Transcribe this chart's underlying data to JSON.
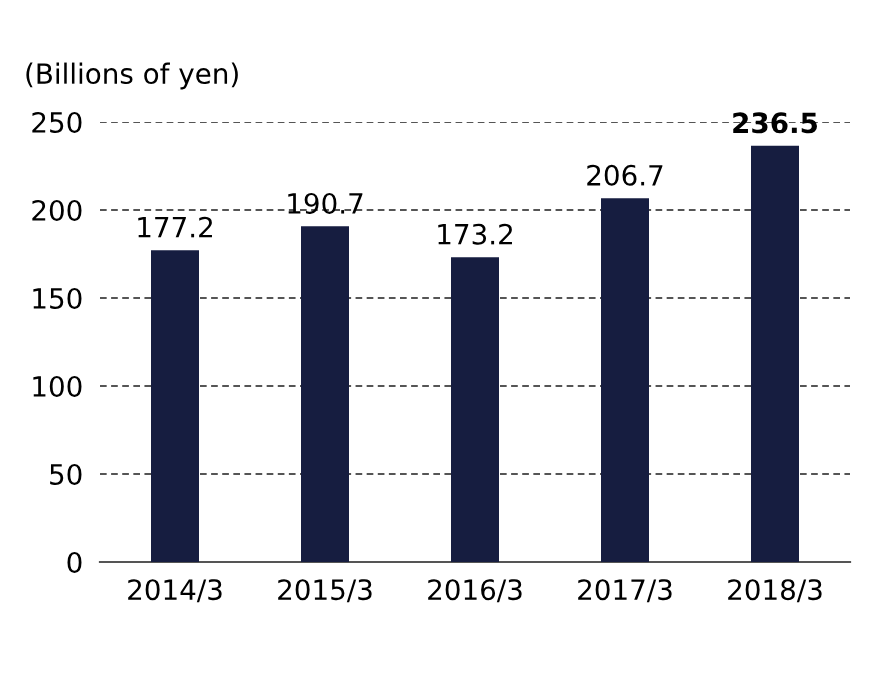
{
  "chart_data": {
    "type": "bar",
    "ylabel": "(Billions of yen)",
    "categories": [
      "2014/3",
      "2015/3",
      "2016/3",
      "2017/3",
      "2018/3"
    ],
    "values": [
      177.2,
      190.7,
      173.2,
      206.7,
      236.5
    ],
    "color": "#161d40",
    "ylim": [
      0,
      250
    ],
    "yticks": [
      0,
      50,
      100,
      150,
      200,
      250
    ],
    "grid": "y",
    "data_labels": true,
    "legend": false
  }
}
